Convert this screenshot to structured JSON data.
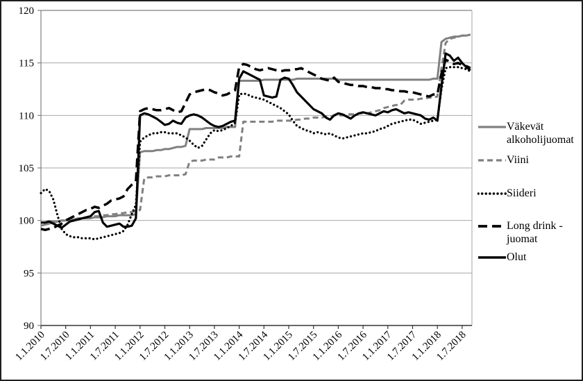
{
  "figure": {
    "background": "#ffffff",
    "border_color": "#1f1f1f"
  },
  "chart_data": {
    "type": "line",
    "title": "",
    "xlabel": "",
    "ylabel": "",
    "grid": true,
    "grid_color": "#a6a6a6",
    "axis_color": "#808080",
    "bottom_axis_color": "#333333",
    "legend_position": "right",
    "y_axis": {
      "min": 90,
      "max": 120,
      "tick_step": 5,
      "ticks": [
        90,
        95,
        100,
        105,
        110,
        115,
        120
      ]
    },
    "x_axis": {
      "unit": "month",
      "start": "1.1.2010",
      "end": "1.9.2018",
      "months_per_tick": 6,
      "tick_labels": [
        "1.1.2010",
        "1.7.2010",
        "1.1.2011",
        "1.7.2011",
        "1.1.2012",
        "1.7.2012",
        "1.1.2013",
        "1.7.2013",
        "1.1.2014",
        "1.7.2014",
        "1.1.2015",
        "1.7.2015",
        "1.1.2016",
        "1.7.2016",
        "1.1.2017",
        "1.7.2017",
        "1.1.2018",
        "1.7.2018"
      ]
    },
    "series": [
      {
        "key": "vakevat",
        "name": "Väkevät alkoholijuomat",
        "legend_label": "Väkevät\nalkoholijuomat",
        "color": "#808080",
        "width": 3,
        "dash": "",
        "linecap": "butt",
        "values": [
          99.5,
          99.6,
          99.7,
          99.8,
          99.9,
          100,
          100,
          100.1,
          100.1,
          100.2,
          100.2,
          100.2,
          100.2,
          100.3,
          100.3,
          100.3,
          100.4,
          100.4,
          100.4,
          100.5,
          100.5,
          100.5,
          100.5,
          100.6,
          106.5,
          106.6,
          106.6,
          106.6,
          106.7,
          106.7,
          106.8,
          106.8,
          106.9,
          107,
          107,
          107.1,
          108.7,
          108.7,
          108.7,
          108.7,
          108.8,
          108.8,
          108.8,
          108.8,
          108.8,
          108.9,
          108.9,
          108.9,
          113.3,
          113.3,
          113.3,
          113.3,
          113.3,
          113.3,
          113.4,
          113.4,
          113.4,
          113.4,
          113.4,
          113.4,
          113.4,
          113.4,
          113.5,
          113.5,
          113.5,
          113.5,
          113.5,
          113.5,
          113.5,
          113.5,
          113.5,
          113.5,
          113.4,
          113.4,
          113.4,
          113.4,
          113.4,
          113.4,
          113.4,
          113.4,
          113.4,
          113.4,
          113.4,
          113.4,
          113.4,
          113.4,
          113.4,
          113.4,
          113.4,
          113.4,
          113.4,
          113.4,
          113.4,
          113.4,
          113.4,
          113.5,
          113.5,
          117,
          117.3,
          117.4,
          117.5,
          117.5,
          117.6,
          117.6,
          117.7
        ]
      },
      {
        "key": "viini",
        "name": "Viini",
        "legend_label": "Viini",
        "color": "#808080",
        "width": 3,
        "dash": "8 5",
        "linecap": "butt",
        "values": [
          99.8,
          99.8,
          99.9,
          99.9,
          99.9,
          100,
          100,
          100,
          100.1,
          100.1,
          100.2,
          100.2,
          100.3,
          100.4,
          100.4,
          100.5,
          100.5,
          100.6,
          100.6,
          100.7,
          100.7,
          100.8,
          100.8,
          100.9,
          101,
          104,
          104.1,
          104.1,
          104.2,
          104.2,
          104.2,
          104.3,
          104.3,
          104.3,
          104.3,
          104.4,
          105.6,
          105.7,
          105.7,
          105.7,
          105.8,
          105.8,
          105.8,
          106,
          106,
          106,
          106.1,
          106.1,
          106.1,
          109.4,
          109.4,
          109.4,
          109.4,
          109.4,
          109.4,
          109.4,
          109.4,
          109.5,
          109.5,
          109.5,
          109.5,
          109.5,
          109.6,
          109.6,
          109.7,
          109.7,
          109.8,
          109.8,
          109.8,
          109.9,
          109.9,
          110,
          110,
          110,
          110.1,
          110.1,
          110.1,
          110.2,
          110.2,
          110.2,
          110.3,
          110.4,
          110.5,
          110.7,
          110.8,
          110.9,
          111,
          111,
          111.4,
          111.5,
          111.5,
          111.5,
          111.6,
          111.6,
          111.7,
          111.7,
          111.8,
          114.5,
          116.9,
          117.3,
          117.4,
          117.5,
          117.6,
          117.6,
          117.7
        ]
      },
      {
        "key": "siideri",
        "name": "Siideri",
        "legend_label": "Siideri",
        "color": "#000000",
        "width": 3.2,
        "dash": "0.1 5.5",
        "linecap": "round",
        "values": [
          102.6,
          103,
          102.8,
          102,
          100.5,
          99.2,
          98.7,
          98.5,
          98.4,
          98.4,
          98.3,
          98.3,
          98.3,
          98.2,
          98.3,
          98.4,
          98.5,
          98.6,
          98.7,
          98.8,
          99,
          99.6,
          100.6,
          101.5,
          107.5,
          107.9,
          108.1,
          108.3,
          108.3,
          108.4,
          108.4,
          108.3,
          108.3,
          108.3,
          108.1,
          107.9,
          107.6,
          107.2,
          106.9,
          107.1,
          107.7,
          108.3,
          108.6,
          108.5,
          108.6,
          108.8,
          109,
          109.3,
          112,
          112.1,
          112,
          111.8,
          111.7,
          111.6,
          111.5,
          111.3,
          111.1,
          110.9,
          110.7,
          110.4,
          110.1,
          109.5,
          109,
          108.8,
          108.6,
          108.5,
          108.3,
          108.4,
          108.3,
          108.2,
          108.3,
          108.1,
          107.9,
          107.8,
          107.9,
          108,
          108.1,
          108.2,
          108.3,
          108.3,
          108.4,
          108.5,
          108.7,
          108.8,
          109,
          109.2,
          109.3,
          109.4,
          109.5,
          109.6,
          109.6,
          109.4,
          109.2,
          109.3,
          109.4,
          109.5,
          109.6,
          112.5,
          114.5,
          114.6,
          114.6,
          114.6,
          114.5,
          114.4,
          114.2
        ]
      },
      {
        "key": "longdrink",
        "name": "Long drink -juomat",
        "legend_label": "Long drink -\njuomat",
        "color": "#000000",
        "width": 3.5,
        "dash": "13 7",
        "linecap": "butt",
        "values": [
          99.2,
          99.1,
          99.2,
          99.3,
          99.5,
          99.7,
          100,
          100.2,
          100.4,
          100.6,
          100.8,
          101,
          101.1,
          101.3,
          101.2,
          101.4,
          101.6,
          101.9,
          102,
          102.1,
          102.3,
          103,
          103.4,
          103.7,
          110.4,
          110.6,
          110.7,
          110.6,
          110.5,
          110.5,
          110.6,
          110.7,
          110.5,
          110.3,
          110.4,
          111.2,
          112,
          112.2,
          112.3,
          112.4,
          112.5,
          112.4,
          112.2,
          112.1,
          111.9,
          112,
          112.2,
          112.4,
          114.6,
          114.9,
          114.8,
          114.6,
          114.4,
          114.3,
          114.4,
          114.5,
          114.4,
          114.3,
          114.2,
          114.3,
          114.3,
          114.4,
          114.4,
          114.5,
          114.3,
          114.1,
          113.9,
          113.7,
          113.5,
          113.4,
          113.3,
          113.6,
          113.2,
          113.1,
          113,
          112.9,
          112.9,
          112.8,
          112.8,
          112.7,
          112.7,
          112.6,
          112.6,
          112.5,
          112.5,
          112.4,
          112.4,
          112.3,
          112.3,
          112.2,
          112.2,
          112.1,
          112,
          111.9,
          111.8,
          112,
          112,
          114,
          115.3,
          115.1,
          114.9,
          115,
          114.8,
          114.7,
          114.5
        ]
      },
      {
        "key": "olut",
        "name": "Olut",
        "legend_label": "Olut",
        "color": "#000000",
        "width": 3.2,
        "dash": "",
        "linecap": "butt",
        "values": [
          99.8,
          99.8,
          99.9,
          99.7,
          99.5,
          99.3,
          99.6,
          99.9,
          100,
          100.1,
          100.2,
          100.3,
          100.4,
          100.8,
          100.9,
          99.8,
          99.4,
          99.5,
          99.6,
          99.7,
          99.4,
          99.4,
          99.5,
          100.2,
          110,
          110.2,
          110.1,
          109.9,
          109.7,
          109.4,
          109.1,
          109.2,
          109.5,
          109.3,
          109.2,
          109.8,
          110,
          110.1,
          110,
          109.8,
          109.5,
          109.2,
          109,
          108.9,
          109,
          109.2,
          109.4,
          109.5,
          113.5,
          114.2,
          114,
          113.8,
          113.6,
          113.4,
          111.9,
          111.8,
          111.7,
          111.8,
          113.4,
          113.6,
          113.5,
          112.9,
          112.2,
          111.8,
          111.4,
          111,
          110.6,
          110.4,
          110.2,
          109.8,
          109.6,
          110,
          110.2,
          110.1,
          109.9,
          109.7,
          110,
          110.2,
          110.3,
          110.2,
          110.1,
          110,
          110.2,
          110.4,
          110.3,
          110.5,
          110.6,
          110.4,
          110.2,
          110.3,
          110.2,
          110.1,
          110,
          109.7,
          109.6,
          109.8,
          109.5,
          112.8,
          115.9,
          115.7,
          115.2,
          115.5,
          115,
          114.6,
          114.3
        ]
      }
    ]
  }
}
